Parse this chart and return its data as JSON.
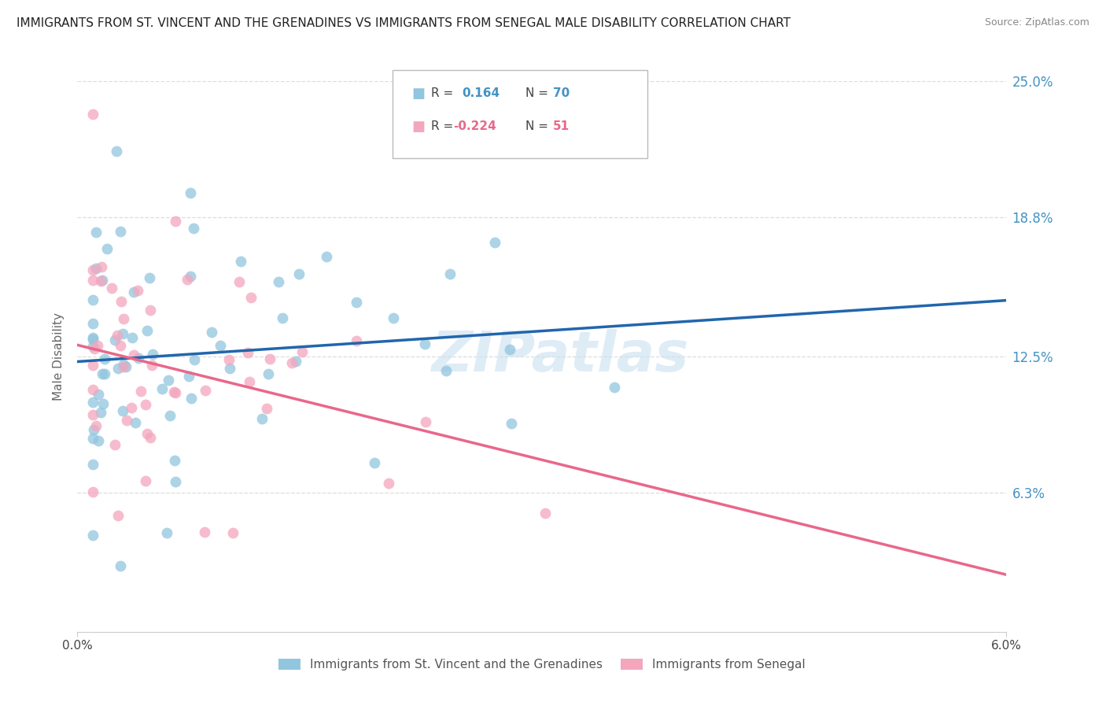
{
  "title": "IMMIGRANTS FROM ST. VINCENT AND THE GRENADINES VS IMMIGRANTS FROM SENEGAL MALE DISABILITY CORRELATION CHART",
  "source": "Source: ZipAtlas.com",
  "ylabel": "Male Disability",
  "xmin": 0.0,
  "xmax": 0.06,
  "ymin": 0.0,
  "ymax": 0.25,
  "ytick_vals": [
    0.063,
    0.125,
    0.188,
    0.25
  ],
  "ytick_labels": [
    "6.3%",
    "12.5%",
    "18.8%",
    "25.0%"
  ],
  "xtick_vals": [
    0.0,
    0.06
  ],
  "xtick_labels": [
    "0.0%",
    "6.0%"
  ],
  "legend1_label": "Immigrants from St. Vincent and the Grenadines",
  "legend2_label": "Immigrants from Senegal",
  "R1": 0.164,
  "N1": 70,
  "R2": -0.224,
  "N2": 51,
  "color_blue": "#92c5de",
  "color_pink": "#f4a6bd",
  "color_blue_line": "#2166ac",
  "color_pink_line": "#e8688a",
  "grid_color": "#dddddd",
  "tick_color": "#4393c3"
}
